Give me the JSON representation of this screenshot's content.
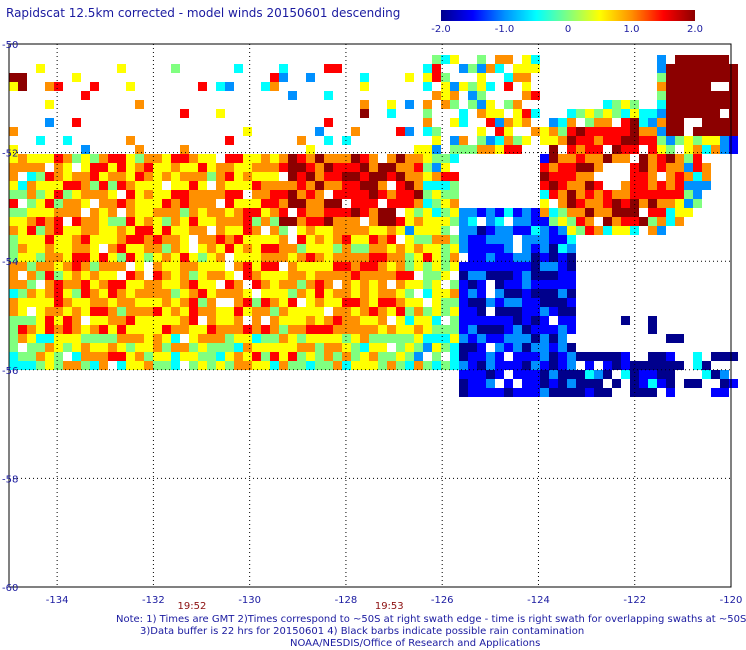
{
  "title": "Rapidscat 12.5km corrected - model winds 20150601 descending",
  "colorbar": {
    "tick_labels": [
      "-2.0",
      "-1.0",
      "0",
      "1.0",
      "2.0"
    ],
    "tick_values": [
      -2.0,
      -1.0,
      0,
      1.0,
      2.0
    ],
    "range": [
      -2.0,
      2.0
    ],
    "colormap": [
      "#00008c",
      "#0000ff",
      "#0090ff",
      "#00ffff",
      "#80ff80",
      "#ffff00",
      "#ff9000",
      "#ff0000",
      "#8c0000"
    ]
  },
  "map": {
    "lon_range": [
      -135,
      -120
    ],
    "lat_range": [
      -60,
      -50
    ],
    "x_tick_labels": [
      "-134",
      "-132",
      "-130",
      "-128",
      "-126",
      "-124",
      "-122",
      "-120"
    ],
    "x_tick_values": [
      -134,
      -132,
      -130,
      -128,
      -126,
      -124,
      -122,
      -120
    ],
    "y_tick_labels": [
      "-50",
      "-52",
      "-54",
      "-56",
      "-58",
      "-60"
    ],
    "y_tick_values": [
      -50,
      -52,
      -54,
      -56,
      -58,
      -60
    ],
    "grid": "dotted",
    "swath_times": [
      {
        "label": "19:52",
        "lon": -131.2
      },
      {
        "label": "19:53",
        "lon": -127.1
      }
    ],
    "time_color": "#8c1010"
  },
  "notes": [
    "Note: 1) Times are GMT 2)Times correspond to ~50S at right swath edge - time is right swath for overlapping swaths at ~50S",
    "3)Data buffer is 22 hrs for 20150601 4) Black barbs indicate possible rain contamination",
    "NOAA/NESDIS/Office of Research and Applications"
  ]
}
